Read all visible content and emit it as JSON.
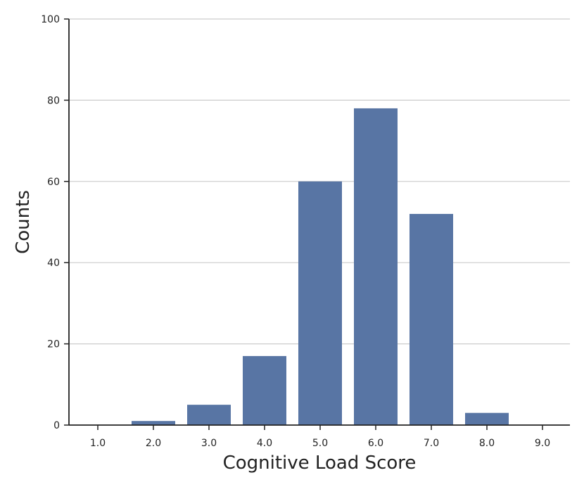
{
  "chart_data": {
    "type": "bar",
    "title": "",
    "xlabel": "Cognitive Load Score",
    "ylabel": "Counts",
    "categories": [
      "1.0",
      "2.0",
      "3.0",
      "4.0",
      "5.0",
      "6.0",
      "7.0",
      "8.0",
      "9.0"
    ],
    "values": [
      0,
      1,
      5,
      17,
      60,
      78,
      52,
      3,
      0
    ],
    "ylim": [
      0,
      100
    ],
    "yticks": [
      0,
      20,
      40,
      60,
      80,
      100
    ],
    "grid": "horizontal",
    "legend": "none",
    "bar_color": "#5875a4",
    "grid_color": "#cccccc",
    "axis_color": "#222222"
  }
}
